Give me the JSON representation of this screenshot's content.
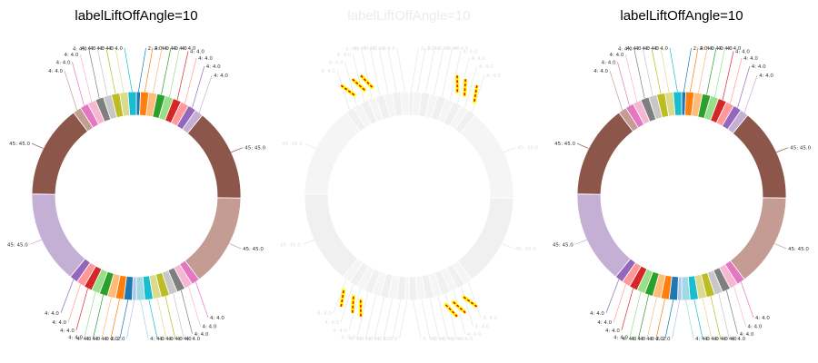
{
  "chart_data": [
    {
      "type": "donut",
      "title": "labelLiftOffAngle=10",
      "style": "normal",
      "palette": [
        "#1f77b4",
        "#ff7f0e",
        "#ffbb78",
        "#2ca02c",
        "#98df8a",
        "#d62728",
        "#ff9896",
        "#9467bd",
        "#c5b0d5",
        "#8c564b",
        "#c49c94",
        "#e377c2",
        "#f7b6d2",
        "#7f7f7f",
        "#c7c7c7",
        "#bcbd22",
        "#dbdb8d",
        "#17becf",
        "#9edae5",
        "#aec7e8"
      ],
      "slices": [
        {
          "value": 2.0,
          "label": "2: 2.0"
        },
        {
          "value": 4.0,
          "label": "4: 4.0"
        },
        {
          "value": 4.0,
          "label": "4: 4.0"
        },
        {
          "value": 4.0,
          "label": "4: 4.0"
        },
        {
          "value": 4.0,
          "label": "4: 4.0"
        },
        {
          "value": 4.0,
          "label": "4: 4.0"
        },
        {
          "value": 4.0,
          "label": "4: 4.0"
        },
        {
          "value": 4.0,
          "label": "4: 4.0"
        },
        {
          "value": 4.0,
          "label": "4: 4.0"
        },
        {
          "value": 45.0,
          "label": "45: 45.0"
        },
        {
          "value": 45.0,
          "label": "45: 45.0"
        },
        {
          "value": 4.0,
          "label": "4: 4.0"
        },
        {
          "value": 4.0,
          "label": "4: 4.0"
        },
        {
          "value": 4.0,
          "label": "4: 4.0"
        },
        {
          "value": 4.0,
          "label": "4: 4.0"
        },
        {
          "value": 4.0,
          "label": "4: 4.0"
        },
        {
          "value": 4.0,
          "label": "4: 4.0"
        },
        {
          "value": 4.0,
          "label": "4: 4.0"
        },
        {
          "value": 4.0,
          "label": "4: 4.0"
        },
        {
          "value": 2.0,
          "label": "2: 2.0"
        },
        {
          "value": 4.0,
          "label": "4: 4.0"
        },
        {
          "value": 4.0,
          "label": "4: 4.0"
        },
        {
          "value": 4.0,
          "label": "4: 4.0"
        },
        {
          "value": 4.0,
          "label": "4: 4.0"
        },
        {
          "value": 4.0,
          "label": "4: 4.0"
        },
        {
          "value": 4.0,
          "label": "4: 4.0"
        },
        {
          "value": 4.0,
          "label": "4: 4.0"
        },
        {
          "value": 4.0,
          "label": "4: 4.0"
        },
        {
          "value": 45.0,
          "label": "45: 45.0"
        },
        {
          "value": 45.0,
          "label": "45: 45.0"
        },
        {
          "value": 4.0,
          "label": "4: 4.0"
        },
        {
          "value": 4.0,
          "label": "4: 4.0"
        },
        {
          "value": 4.0,
          "label": "4: 4.0"
        },
        {
          "value": 4.0,
          "label": "4: 4.0"
        },
        {
          "value": 4.0,
          "label": "4: 4.0"
        },
        {
          "value": 4.0,
          "label": "4: 4.0"
        },
        {
          "value": 4.0,
          "label": "4: 4.0"
        },
        {
          "value": 4.0,
          "label": "4: 4.0"
        }
      ]
    },
    {
      "type": "donut",
      "title": "labelLiftOffAngle=10",
      "style": "faded-diff",
      "palette": [
        "#f0f0f0",
        "#f4f4f4"
      ],
      "highlight_colors": [
        "#ff0000",
        "#ffff00"
      ],
      "slices": "same-as-panel-1"
    },
    {
      "type": "donut",
      "title": "labelLiftOffAngle=10",
      "style": "normal",
      "palette": "same-as-panel-1",
      "slices": "same-as-panel-1"
    }
  ]
}
